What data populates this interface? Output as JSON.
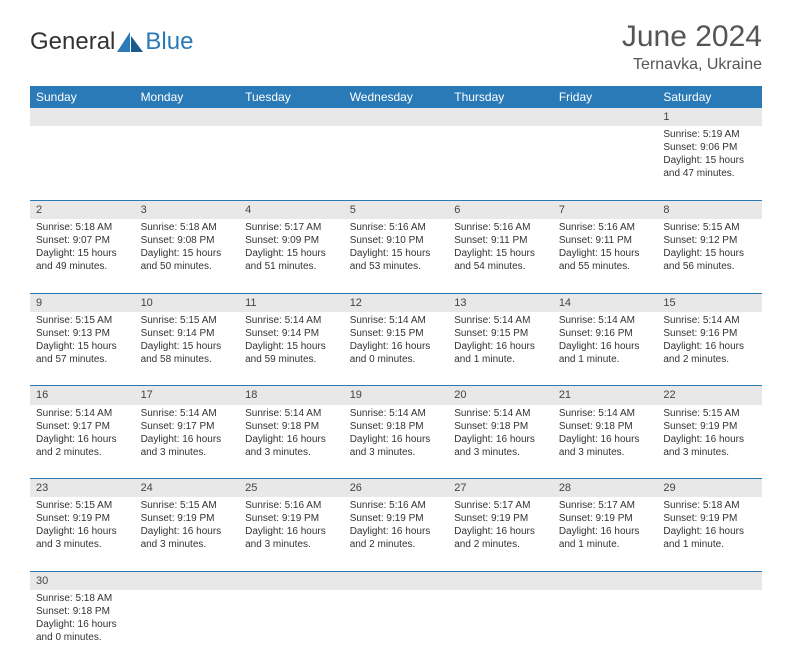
{
  "logo": {
    "general": "General",
    "blue": "Blue"
  },
  "title": "June 2024",
  "location": "Ternavka, Ukraine",
  "weekdays": [
    "Sunday",
    "Monday",
    "Tuesday",
    "Wednesday",
    "Thursday",
    "Friday",
    "Saturday"
  ],
  "colors": {
    "header_bg": "#2a7ab8",
    "header_text": "#ffffff",
    "daynum_bg": "#e8e8e8",
    "cell_border": "#2a7ab8",
    "text": "#333333"
  },
  "weeks": [
    {
      "nums": [
        "",
        "",
        "",
        "",
        "",
        "",
        "1"
      ],
      "cells": [
        null,
        null,
        null,
        null,
        null,
        null,
        {
          "sunrise": "Sunrise: 5:19 AM",
          "sunset": "Sunset: 9:06 PM",
          "day1": "Daylight: 15 hours",
          "day2": "and 47 minutes."
        }
      ]
    },
    {
      "nums": [
        "2",
        "3",
        "4",
        "5",
        "6",
        "7",
        "8"
      ],
      "cells": [
        {
          "sunrise": "Sunrise: 5:18 AM",
          "sunset": "Sunset: 9:07 PM",
          "day1": "Daylight: 15 hours",
          "day2": "and 49 minutes."
        },
        {
          "sunrise": "Sunrise: 5:18 AM",
          "sunset": "Sunset: 9:08 PM",
          "day1": "Daylight: 15 hours",
          "day2": "and 50 minutes."
        },
        {
          "sunrise": "Sunrise: 5:17 AM",
          "sunset": "Sunset: 9:09 PM",
          "day1": "Daylight: 15 hours",
          "day2": "and 51 minutes."
        },
        {
          "sunrise": "Sunrise: 5:16 AM",
          "sunset": "Sunset: 9:10 PM",
          "day1": "Daylight: 15 hours",
          "day2": "and 53 minutes."
        },
        {
          "sunrise": "Sunrise: 5:16 AM",
          "sunset": "Sunset: 9:11 PM",
          "day1": "Daylight: 15 hours",
          "day2": "and 54 minutes."
        },
        {
          "sunrise": "Sunrise: 5:16 AM",
          "sunset": "Sunset: 9:11 PM",
          "day1": "Daylight: 15 hours",
          "day2": "and 55 minutes."
        },
        {
          "sunrise": "Sunrise: 5:15 AM",
          "sunset": "Sunset: 9:12 PM",
          "day1": "Daylight: 15 hours",
          "day2": "and 56 minutes."
        }
      ]
    },
    {
      "nums": [
        "9",
        "10",
        "11",
        "12",
        "13",
        "14",
        "15"
      ],
      "cells": [
        {
          "sunrise": "Sunrise: 5:15 AM",
          "sunset": "Sunset: 9:13 PM",
          "day1": "Daylight: 15 hours",
          "day2": "and 57 minutes."
        },
        {
          "sunrise": "Sunrise: 5:15 AM",
          "sunset": "Sunset: 9:14 PM",
          "day1": "Daylight: 15 hours",
          "day2": "and 58 minutes."
        },
        {
          "sunrise": "Sunrise: 5:14 AM",
          "sunset": "Sunset: 9:14 PM",
          "day1": "Daylight: 15 hours",
          "day2": "and 59 minutes."
        },
        {
          "sunrise": "Sunrise: 5:14 AM",
          "sunset": "Sunset: 9:15 PM",
          "day1": "Daylight: 16 hours",
          "day2": "and 0 minutes."
        },
        {
          "sunrise": "Sunrise: 5:14 AM",
          "sunset": "Sunset: 9:15 PM",
          "day1": "Daylight: 16 hours",
          "day2": "and 1 minute."
        },
        {
          "sunrise": "Sunrise: 5:14 AM",
          "sunset": "Sunset: 9:16 PM",
          "day1": "Daylight: 16 hours",
          "day2": "and 1 minute."
        },
        {
          "sunrise": "Sunrise: 5:14 AM",
          "sunset": "Sunset: 9:16 PM",
          "day1": "Daylight: 16 hours",
          "day2": "and 2 minutes."
        }
      ]
    },
    {
      "nums": [
        "16",
        "17",
        "18",
        "19",
        "20",
        "21",
        "22"
      ],
      "cells": [
        {
          "sunrise": "Sunrise: 5:14 AM",
          "sunset": "Sunset: 9:17 PM",
          "day1": "Daylight: 16 hours",
          "day2": "and 2 minutes."
        },
        {
          "sunrise": "Sunrise: 5:14 AM",
          "sunset": "Sunset: 9:17 PM",
          "day1": "Daylight: 16 hours",
          "day2": "and 3 minutes."
        },
        {
          "sunrise": "Sunrise: 5:14 AM",
          "sunset": "Sunset: 9:18 PM",
          "day1": "Daylight: 16 hours",
          "day2": "and 3 minutes."
        },
        {
          "sunrise": "Sunrise: 5:14 AM",
          "sunset": "Sunset: 9:18 PM",
          "day1": "Daylight: 16 hours",
          "day2": "and 3 minutes."
        },
        {
          "sunrise": "Sunrise: 5:14 AM",
          "sunset": "Sunset: 9:18 PM",
          "day1": "Daylight: 16 hours",
          "day2": "and 3 minutes."
        },
        {
          "sunrise": "Sunrise: 5:14 AM",
          "sunset": "Sunset: 9:18 PM",
          "day1": "Daylight: 16 hours",
          "day2": "and 3 minutes."
        },
        {
          "sunrise": "Sunrise: 5:15 AM",
          "sunset": "Sunset: 9:19 PM",
          "day1": "Daylight: 16 hours",
          "day2": "and 3 minutes."
        }
      ]
    },
    {
      "nums": [
        "23",
        "24",
        "25",
        "26",
        "27",
        "28",
        "29"
      ],
      "cells": [
        {
          "sunrise": "Sunrise: 5:15 AM",
          "sunset": "Sunset: 9:19 PM",
          "day1": "Daylight: 16 hours",
          "day2": "and 3 minutes."
        },
        {
          "sunrise": "Sunrise: 5:15 AM",
          "sunset": "Sunset: 9:19 PM",
          "day1": "Daylight: 16 hours",
          "day2": "and 3 minutes."
        },
        {
          "sunrise": "Sunrise: 5:16 AM",
          "sunset": "Sunset: 9:19 PM",
          "day1": "Daylight: 16 hours",
          "day2": "and 3 minutes."
        },
        {
          "sunrise": "Sunrise: 5:16 AM",
          "sunset": "Sunset: 9:19 PM",
          "day1": "Daylight: 16 hours",
          "day2": "and 2 minutes."
        },
        {
          "sunrise": "Sunrise: 5:17 AM",
          "sunset": "Sunset: 9:19 PM",
          "day1": "Daylight: 16 hours",
          "day2": "and 2 minutes."
        },
        {
          "sunrise": "Sunrise: 5:17 AM",
          "sunset": "Sunset: 9:19 PM",
          "day1": "Daylight: 16 hours",
          "day2": "and 1 minute."
        },
        {
          "sunrise": "Sunrise: 5:18 AM",
          "sunset": "Sunset: 9:19 PM",
          "day1": "Daylight: 16 hours",
          "day2": "and 1 minute."
        }
      ]
    },
    {
      "nums": [
        "30",
        "",
        "",
        "",
        "",
        "",
        ""
      ],
      "cells": [
        {
          "sunrise": "Sunrise: 5:18 AM",
          "sunset": "Sunset: 9:18 PM",
          "day1": "Daylight: 16 hours",
          "day2": "and 0 minutes."
        },
        null,
        null,
        null,
        null,
        null,
        null
      ]
    }
  ]
}
